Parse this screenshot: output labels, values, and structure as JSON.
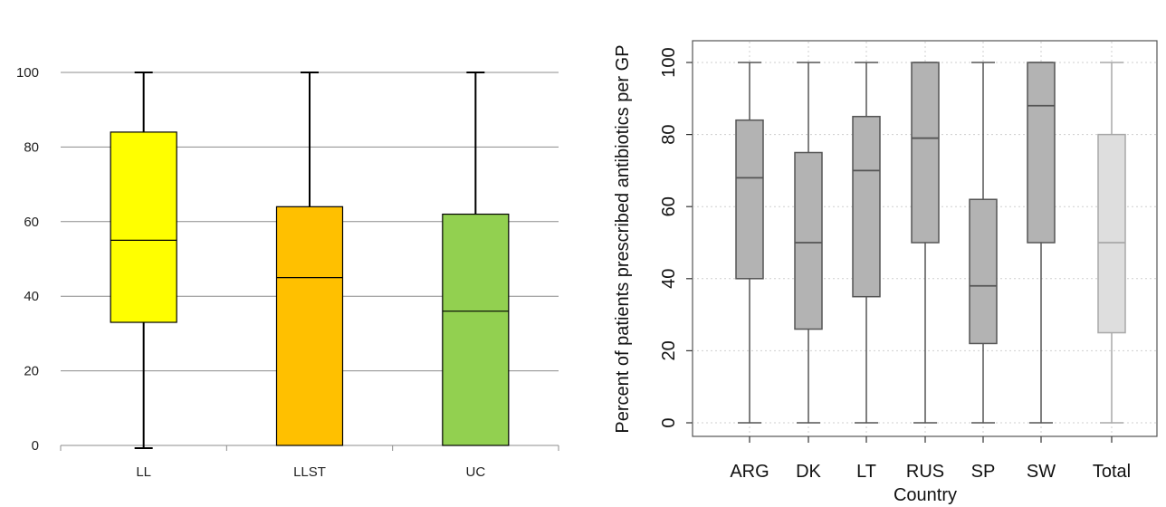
{
  "chart_data": [
    {
      "type": "box",
      "title": "",
      "xlabel": "",
      "ylabel": "",
      "ylim": [
        0,
        100
      ],
      "yticks": [
        0,
        20,
        40,
        60,
        80,
        100
      ],
      "grid": "horizontal",
      "categories": [
        "LL",
        "LLST",
        "UC"
      ],
      "boxes": [
        {
          "category": "LL",
          "min": 0,
          "q1": 33,
          "median": 55,
          "q3": 84,
          "max": 100,
          "color": "#ffff00"
        },
        {
          "category": "LLST",
          "min": 0,
          "q1": 0,
          "median": 45,
          "q3": 64,
          "max": 100,
          "color": "#ffc000"
        },
        {
          "category": "UC",
          "min": 0,
          "q1": 0,
          "median": 36,
          "q3": 62,
          "max": 100,
          "color": "#92d050"
        }
      ]
    },
    {
      "type": "box",
      "title": "",
      "xlabel": "Country",
      "ylabel": "Percent of patients prescribed antibiotics per GP",
      "ylim": [
        0,
        100
      ],
      "yticks": [
        0,
        20,
        40,
        60,
        80,
        100
      ],
      "grid": "dotted",
      "categories": [
        "ARG",
        "DK",
        "LT",
        "RUS",
        "SP",
        "SW",
        "Total"
      ],
      "boxes": [
        {
          "category": "ARG",
          "min": 0,
          "q1": 40,
          "median": 68,
          "q3": 84,
          "max": 100,
          "color": "#b3b3b3"
        },
        {
          "category": "DK",
          "min": 0,
          "q1": 26,
          "median": 50,
          "q3": 75,
          "max": 100,
          "color": "#b3b3b3"
        },
        {
          "category": "LT",
          "min": 0,
          "q1": 35,
          "median": 70,
          "q3": 85,
          "max": 100,
          "color": "#b3b3b3"
        },
        {
          "category": "RUS",
          "min": 0,
          "q1": 50,
          "median": 79,
          "q3": 100,
          "max": 100,
          "color": "#b3b3b3"
        },
        {
          "category": "SP",
          "min": 0,
          "q1": 22,
          "median": 38,
          "q3": 62,
          "max": 100,
          "color": "#b3b3b3"
        },
        {
          "category": "SW",
          "min": 0,
          "q1": 50,
          "median": 88,
          "q3": 100,
          "max": 100,
          "color": "#b3b3b3"
        },
        {
          "category": "Total",
          "min": 0,
          "q1": 25,
          "median": 50,
          "q3": 80,
          "max": 100,
          "color": "#dedede"
        }
      ]
    }
  ]
}
